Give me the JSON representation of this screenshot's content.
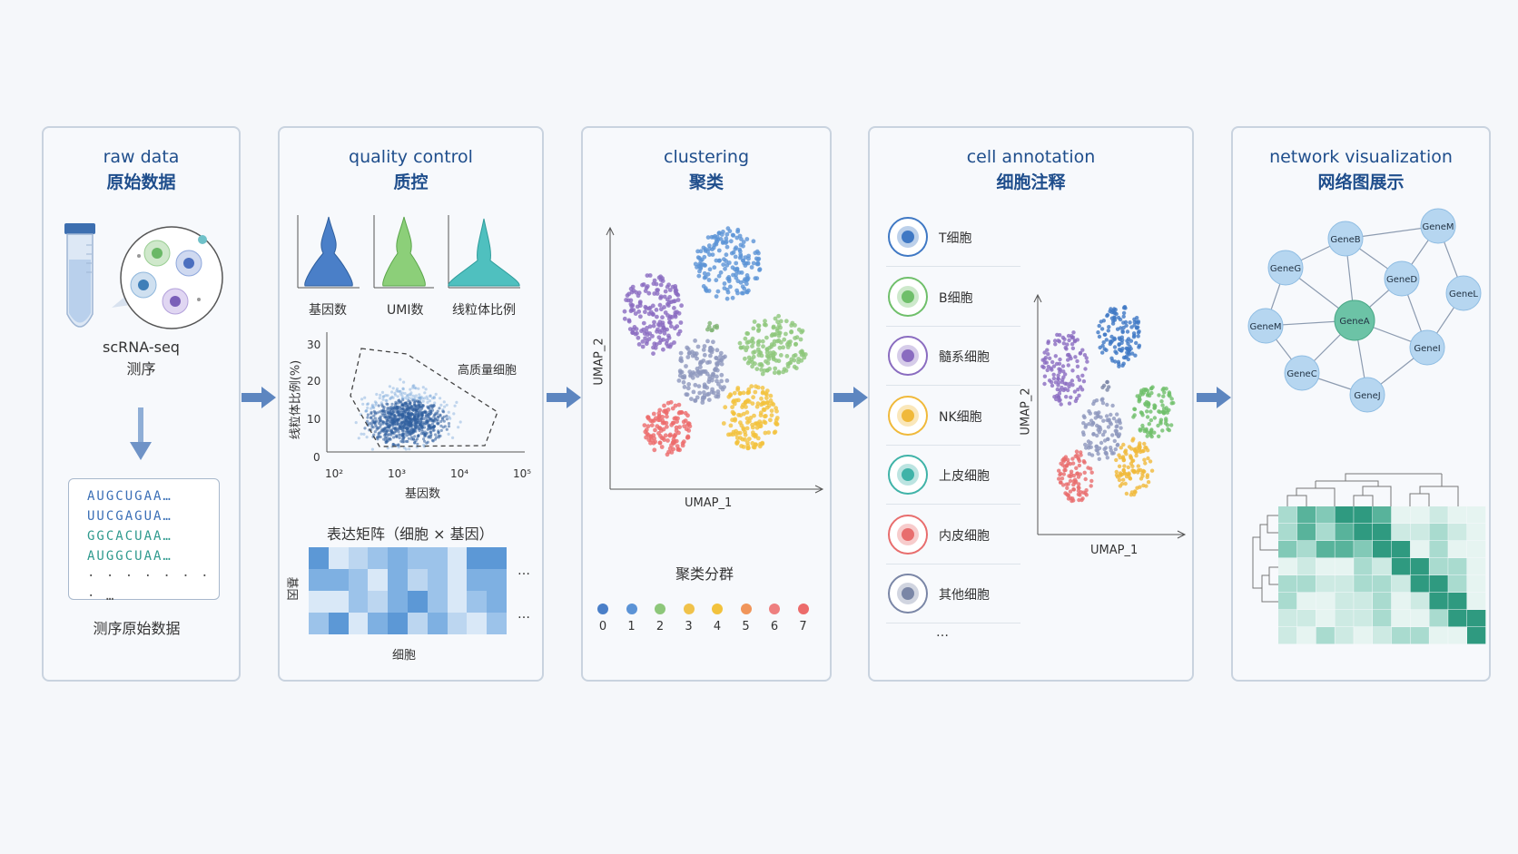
{
  "panels": {
    "raw": {
      "en": "raw data",
      "zh": "原始数据",
      "sample_label_1": "scRNA-seq",
      "sample_label_2": "测序",
      "sequences": [
        "AUGCUGAA…",
        "UUCGAGUA…",
        "GGCACUAA…",
        "AUGGCUAA…",
        "· · · · · · · · …"
      ],
      "caption": "测序原始数据"
    },
    "qc": {
      "en": "quality control",
      "zh": "质控",
      "violin_labels": [
        "基因数",
        "UMI数",
        "线粒体比例"
      ],
      "scatter": {
        "ylabel": "线粒体比例(%)",
        "xlabel": "基因数",
        "yticks": [
          "30",
          "20",
          "10",
          "0"
        ],
        "xticks": [
          "10²",
          "10³",
          "10⁴",
          "10⁵"
        ],
        "gate_label": "高质量细胞"
      },
      "matrix": {
        "title": "表达矩阵（细胞 × 基因）",
        "row_label": "基因",
        "col_label": "细胞",
        "ellipsis": "…"
      }
    },
    "cluster": {
      "en": "clustering",
      "zh": "聚类",
      "xlabel": "UMAP_1",
      "ylabel": "UMAP_2",
      "legend_title": "聚类分群",
      "clusters": [
        {
          "id": "0",
          "color": "#4a7fc8"
        },
        {
          "id": "1",
          "color": "#5b93d6"
        },
        {
          "id": "2",
          "color": "#8dc77a"
        },
        {
          "id": "3",
          "color": "#f0c24a"
        },
        {
          "id": "4",
          "color": "#f2c23c"
        },
        {
          "id": "5",
          "color": "#f0955a"
        },
        {
          "id": "6",
          "color": "#ee7f7f"
        },
        {
          "id": "7",
          "color": "#ec6b6b"
        }
      ]
    },
    "annot": {
      "en": "cell annotation",
      "zh": "细胞注释",
      "xlabel": "UMAP_1",
      "ylabel": "UMAP_2",
      "cell_types": [
        {
          "name": "T细胞",
          "color": "#3f78c4"
        },
        {
          "name": "B细胞",
          "color": "#6fbf6a"
        },
        {
          "name": "髓系细胞",
          "color": "#8a6cc0"
        },
        {
          "name": "NK细胞",
          "color": "#f0b93a"
        },
        {
          "name": "上皮细胞",
          "color": "#3fb3a8"
        },
        {
          "name": "内皮细胞",
          "color": "#e86d6d"
        },
        {
          "name": "其他细胞",
          "color": "#7a86a6"
        }
      ],
      "more": "…"
    },
    "network": {
      "en": "network visualization",
      "zh": "网络图展示",
      "genes": [
        "GeneM",
        "GeneB",
        "GeneG",
        "GeneD",
        "GeneL",
        "GeneA",
        "GeneM",
        "GeneI",
        "GeneC",
        "GeneJ"
      ]
    }
  }
}
